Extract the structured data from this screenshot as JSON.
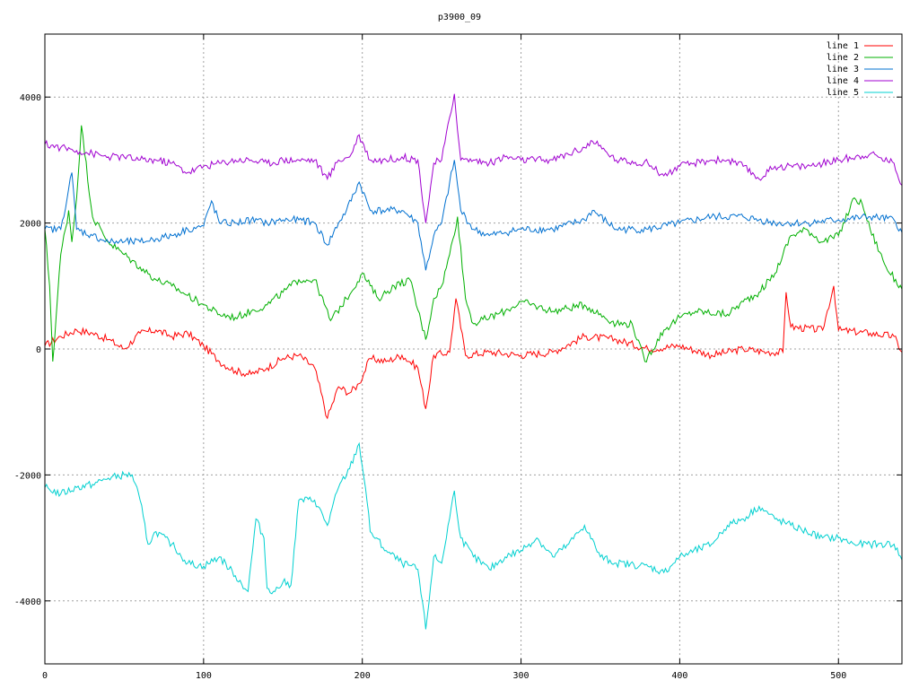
{
  "chart_data": {
    "type": "line",
    "title": "p3900_09",
    "xlim": [
      0,
      540
    ],
    "ylim": [
      -5000,
      5000
    ],
    "x_ticks": [
      0,
      100,
      200,
      300,
      400,
      500
    ],
    "y_ticks": [
      -4000,
      -2000,
      0,
      2000,
      4000
    ],
    "grid": true,
    "legend_position": "top-right",
    "series": [
      {
        "name": "line 1",
        "color": "#ff0000",
        "points": [
          [
            0,
            50
          ],
          [
            10,
            200
          ],
          [
            20,
            300
          ],
          [
            30,
            250
          ],
          [
            40,
            150
          ],
          [
            50,
            0
          ],
          [
            60,
            250
          ],
          [
            70,
            300
          ],
          [
            80,
            200
          ],
          [
            90,
            250
          ],
          [
            100,
            50
          ],
          [
            110,
            -200
          ],
          [
            120,
            -350
          ],
          [
            130,
            -400
          ],
          [
            140,
            -300
          ],
          [
            150,
            -150
          ],
          [
            160,
            -100
          ],
          [
            170,
            -300
          ],
          [
            178,
            -1100
          ],
          [
            185,
            -600
          ],
          [
            192,
            -700
          ],
          [
            198,
            -550
          ],
          [
            205,
            -150
          ],
          [
            215,
            -200
          ],
          [
            225,
            -100
          ],
          [
            235,
            -300
          ],
          [
            240,
            -950
          ],
          [
            245,
            -100
          ],
          [
            255,
            -50
          ],
          [
            259,
            800
          ],
          [
            265,
            -100
          ],
          [
            280,
            -50
          ],
          [
            300,
            -100
          ],
          [
            320,
            -50
          ],
          [
            340,
            200
          ],
          [
            360,
            150
          ],
          [
            380,
            0
          ],
          [
            400,
            50
          ],
          [
            420,
            -100
          ],
          [
            440,
            0
          ],
          [
            455,
            -50
          ],
          [
            465,
            -50
          ],
          [
            467,
            900
          ],
          [
            470,
            350
          ],
          [
            490,
            300
          ],
          [
            497,
            1000
          ],
          [
            500,
            300
          ],
          [
            520,
            250
          ],
          [
            535,
            200
          ],
          [
            540,
            -50
          ]
        ]
      },
      {
        "name": "line 2",
        "color": "#00b000",
        "points": [
          [
            0,
            1900
          ],
          [
            3,
            1000
          ],
          [
            5,
            -200
          ],
          [
            10,
            1500
          ],
          [
            15,
            2200
          ],
          [
            17,
            1700
          ],
          [
            20,
            2400
          ],
          [
            23,
            3550
          ],
          [
            30,
            2100
          ],
          [
            40,
            1700
          ],
          [
            50,
            1500
          ],
          [
            60,
            1300
          ],
          [
            70,
            1100
          ],
          [
            80,
            1000
          ],
          [
            90,
            850
          ],
          [
            100,
            700
          ],
          [
            110,
            550
          ],
          [
            120,
            500
          ],
          [
            130,
            600
          ],
          [
            140,
            700
          ],
          [
            150,
            900
          ],
          [
            160,
            1100
          ],
          [
            170,
            1100
          ],
          [
            180,
            450
          ],
          [
            190,
            800
          ],
          [
            200,
            1200
          ],
          [
            210,
            800
          ],
          [
            220,
            1000
          ],
          [
            230,
            1100
          ],
          [
            240,
            150
          ],
          [
            245,
            800
          ],
          [
            250,
            1000
          ],
          [
            255,
            1500
          ],
          [
            260,
            2100
          ],
          [
            265,
            800
          ],
          [
            270,
            400
          ],
          [
            290,
            600
          ],
          [
            300,
            750
          ],
          [
            320,
            600
          ],
          [
            340,
            700
          ],
          [
            360,
            400
          ],
          [
            370,
            400
          ],
          [
            378,
            -200
          ],
          [
            390,
            300
          ],
          [
            400,
            500
          ],
          [
            410,
            600
          ],
          [
            430,
            550
          ],
          [
            440,
            750
          ],
          [
            450,
            900
          ],
          [
            460,
            1200
          ],
          [
            470,
            1800
          ],
          [
            480,
            1900
          ],
          [
            490,
            1700
          ],
          [
            500,
            1800
          ],
          [
            510,
            2400
          ],
          [
            515,
            2300
          ],
          [
            520,
            1900
          ],
          [
            530,
            1300
          ],
          [
            540,
            950
          ]
        ]
      },
      {
        "name": "line 3",
        "color": "#0070d0",
        "points": [
          [
            0,
            1900
          ],
          [
            10,
            1900
          ],
          [
            17,
            2800
          ],
          [
            20,
            1900
          ],
          [
            30,
            1800
          ],
          [
            40,
            1700
          ],
          [
            50,
            1700
          ],
          [
            60,
            1700
          ],
          [
            70,
            1750
          ],
          [
            80,
            1800
          ],
          [
            90,
            1900
          ],
          [
            100,
            1950
          ],
          [
            105,
            2350
          ],
          [
            110,
            2000
          ],
          [
            120,
            2000
          ],
          [
            130,
            2050
          ],
          [
            140,
            2000
          ],
          [
            150,
            2050
          ],
          [
            160,
            2050
          ],
          [
            170,
            2000
          ],
          [
            178,
            1650
          ],
          [
            185,
            2000
          ],
          [
            190,
            2200
          ],
          [
            198,
            2650
          ],
          [
            205,
            2200
          ],
          [
            215,
            2200
          ],
          [
            225,
            2200
          ],
          [
            235,
            2000
          ],
          [
            240,
            1250
          ],
          [
            245,
            1800
          ],
          [
            250,
            2000
          ],
          [
            258,
            3000
          ],
          [
            262,
            2200
          ],
          [
            270,
            1900
          ],
          [
            280,
            1800
          ],
          [
            290,
            1850
          ],
          [
            300,
            1900
          ],
          [
            320,
            1900
          ],
          [
            340,
            2050
          ],
          [
            345,
            2200
          ],
          [
            360,
            1900
          ],
          [
            380,
            1900
          ],
          [
            400,
            2000
          ],
          [
            420,
            2100
          ],
          [
            440,
            2100
          ],
          [
            450,
            2050
          ],
          [
            460,
            2000
          ],
          [
            480,
            2000
          ],
          [
            500,
            2050
          ],
          [
            520,
            2100
          ],
          [
            535,
            2050
          ],
          [
            540,
            1850
          ]
        ]
      },
      {
        "name": "line 4",
        "color": "#a000d0",
        "points": [
          [
            0,
            3250
          ],
          [
            10,
            3200
          ],
          [
            20,
            3150
          ],
          [
            30,
            3100
          ],
          [
            40,
            3050
          ],
          [
            50,
            3050
          ],
          [
            60,
            3000
          ],
          [
            70,
            3000
          ],
          [
            80,
            2950
          ],
          [
            90,
            2800
          ],
          [
            100,
            2900
          ],
          [
            110,
            2950
          ],
          [
            120,
            3000
          ],
          [
            130,
            3000
          ],
          [
            140,
            2950
          ],
          [
            150,
            3000
          ],
          [
            160,
            3000
          ],
          [
            170,
            3000
          ],
          [
            178,
            2700
          ],
          [
            185,
            3000
          ],
          [
            192,
            3050
          ],
          [
            198,
            3400
          ],
          [
            205,
            3000
          ],
          [
            215,
            3000
          ],
          [
            225,
            3050
          ],
          [
            235,
            3000
          ],
          [
            240,
            2000
          ],
          [
            245,
            2950
          ],
          [
            250,
            3000
          ],
          [
            258,
            4050
          ],
          [
            262,
            3000
          ],
          [
            270,
            3000
          ],
          [
            280,
            2950
          ],
          [
            290,
            3050
          ],
          [
            300,
            3000
          ],
          [
            320,
            3000
          ],
          [
            340,
            3200
          ],
          [
            345,
            3300
          ],
          [
            360,
            3000
          ],
          [
            380,
            2950
          ],
          [
            390,
            2750
          ],
          [
            400,
            2900
          ],
          [
            420,
            3000
          ],
          [
            430,
            3000
          ],
          [
            440,
            2900
          ],
          [
            450,
            2700
          ],
          [
            460,
            2900
          ],
          [
            480,
            2900
          ],
          [
            500,
            3000
          ],
          [
            520,
            3100
          ],
          [
            535,
            2950
          ],
          [
            540,
            2600
          ]
        ]
      },
      {
        "name": "line 5",
        "color": "#00d0d0",
        "points": [
          [
            0,
            -2200
          ],
          [
            10,
            -2300
          ],
          [
            20,
            -2200
          ],
          [
            30,
            -2150
          ],
          [
            40,
            -2050
          ],
          [
            50,
            -2000
          ],
          [
            55,
            -2000
          ],
          [
            60,
            -2400
          ],
          [
            65,
            -3100
          ],
          [
            70,
            -2900
          ],
          [
            80,
            -3100
          ],
          [
            90,
            -3400
          ],
          [
            100,
            -3450
          ],
          [
            110,
            -3300
          ],
          [
            120,
            -3600
          ],
          [
            128,
            -3850
          ],
          [
            133,
            -2700
          ],
          [
            138,
            -3000
          ],
          [
            140,
            -3800
          ],
          [
            145,
            -3850
          ],
          [
            150,
            -3700
          ],
          [
            155,
            -3750
          ],
          [
            160,
            -2400
          ],
          [
            170,
            -2400
          ],
          [
            178,
            -2800
          ],
          [
            185,
            -2200
          ],
          [
            192,
            -1900
          ],
          [
            198,
            -1500
          ],
          [
            202,
            -2200
          ],
          [
            205,
            -2900
          ],
          [
            215,
            -3200
          ],
          [
            225,
            -3400
          ],
          [
            235,
            -3500
          ],
          [
            240,
            -4450
          ],
          [
            245,
            -3300
          ],
          [
            250,
            -3400
          ],
          [
            258,
            -2250
          ],
          [
            262,
            -3000
          ],
          [
            270,
            -3300
          ],
          [
            280,
            -3500
          ],
          [
            290,
            -3300
          ],
          [
            300,
            -3200
          ],
          [
            310,
            -3000
          ],
          [
            320,
            -3300
          ],
          [
            330,
            -3100
          ],
          [
            340,
            -2800
          ],
          [
            350,
            -3300
          ],
          [
            360,
            -3400
          ],
          [
            380,
            -3450
          ],
          [
            390,
            -3550
          ],
          [
            400,
            -3300
          ],
          [
            420,
            -3100
          ],
          [
            430,
            -2800
          ],
          [
            440,
            -2700
          ],
          [
            450,
            -2500
          ],
          [
            460,
            -2700
          ],
          [
            470,
            -2800
          ],
          [
            480,
            -2900
          ],
          [
            490,
            -3000
          ],
          [
            500,
            -3000
          ],
          [
            510,
            -3100
          ],
          [
            520,
            -3100
          ],
          [
            530,
            -3100
          ],
          [
            535,
            -3100
          ],
          [
            540,
            -3350
          ]
        ]
      }
    ]
  }
}
